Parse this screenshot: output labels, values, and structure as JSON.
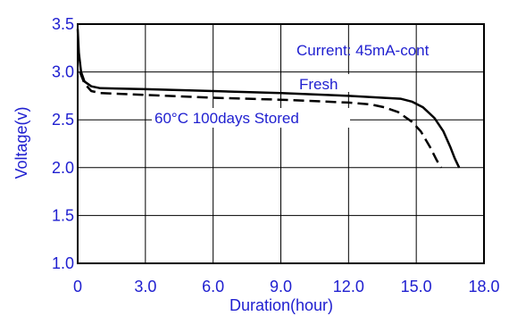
{
  "chart_data": {
    "type": "line",
    "title": "",
    "xlabel": "Duration(hour)",
    "ylabel": "Voltage(v)",
    "xlim": [
      0,
      18
    ],
    "ylim": [
      1.0,
      3.5
    ],
    "grid": true,
    "x_ticks": [
      "0",
      "3.0",
      "6.0",
      "9.0",
      "12.0",
      "15.0",
      "18.0"
    ],
    "y_ticks": [
      "1.0",
      "1.5",
      "2.0",
      "2.5",
      "3.0",
      "3.5"
    ],
    "annotations": {
      "current": "Current: 45mA-cont",
      "fresh": "Fresh",
      "stored": "60°C 100days Stored"
    },
    "colors": {
      "labels": "#2020d0",
      "lines": "#000000",
      "grid": "#000000"
    },
    "series": [
      {
        "style": "solid",
        "points": [
          [
            0.0,
            3.45
          ],
          [
            0.05,
            3.2
          ],
          [
            0.15,
            3.0
          ],
          [
            0.3,
            2.9
          ],
          [
            0.6,
            2.85
          ],
          [
            1.0,
            2.83
          ],
          [
            3.0,
            2.82
          ],
          [
            6.0,
            2.8
          ],
          [
            9.0,
            2.78
          ],
          [
            12.0,
            2.75
          ],
          [
            13.5,
            2.73
          ],
          [
            14.3,
            2.72
          ],
          [
            14.8,
            2.69
          ],
          [
            15.3,
            2.63
          ],
          [
            15.8,
            2.52
          ],
          [
            16.2,
            2.38
          ],
          [
            16.5,
            2.22
          ],
          [
            16.7,
            2.1
          ],
          [
            16.9,
            2.0
          ]
        ]
      },
      {
        "style": "dashed",
        "points": [
          [
            0.1,
            3.0
          ],
          [
            0.3,
            2.88
          ],
          [
            0.6,
            2.8
          ],
          [
            1.0,
            2.78
          ],
          [
            3.0,
            2.76
          ],
          [
            6.0,
            2.73
          ],
          [
            9.0,
            2.71
          ],
          [
            12.0,
            2.68
          ],
          [
            13.0,
            2.66
          ],
          [
            13.6,
            2.63
          ],
          [
            14.2,
            2.58
          ],
          [
            14.8,
            2.48
          ],
          [
            15.2,
            2.38
          ],
          [
            15.6,
            2.22
          ],
          [
            15.9,
            2.08
          ],
          [
            16.1,
            2.0
          ]
        ]
      }
    ]
  }
}
